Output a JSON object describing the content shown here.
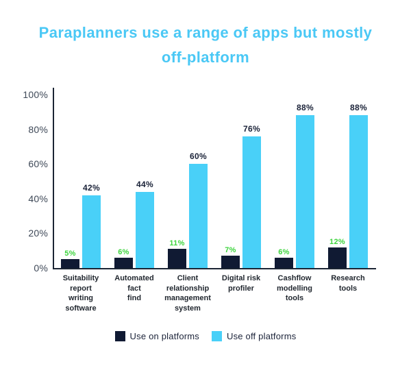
{
  "title": {
    "text": "Paraplanners use a range of apps but mostly off-platform",
    "lines": [
      "Paraplanners use a range of apps but mostly",
      "off-platform"
    ],
    "color": "#4AC8F5"
  },
  "chart_data": {
    "type": "bar",
    "title": "Paraplanners use a range of apps but mostly off-platform",
    "categories": [
      "Suitability report writing software",
      "Automated fact find",
      "Client relationship management system",
      "Digital risk profiler",
      "Cashflow modelling tools",
      "Research tools"
    ],
    "category_lines": [
      [
        "Suitability",
        "report",
        "writing",
        "software"
      ],
      [
        "Automated",
        "fact",
        "find"
      ],
      [
        "Client",
        "relationship",
        "management",
        "system"
      ],
      [
        "Digital risk",
        "profiler"
      ],
      [
        "Cashflow",
        "modelling",
        "tools"
      ],
      [
        "Research",
        "tools"
      ]
    ],
    "series": [
      {
        "name": "Use on platforms",
        "values": [
          5,
          6,
          11,
          7,
          6,
          12
        ],
        "color": "#101A33",
        "label_color": "#3DD43D"
      },
      {
        "name": "Use off platforms",
        "values": [
          42,
          44,
          60,
          76,
          88,
          88
        ],
        "color": "#49D0F8",
        "label_color": "#1A2238"
      }
    ],
    "value_suffix": "%",
    "y_ticks": [
      "100%",
      "80%",
      "60%",
      "40%",
      "20%",
      "0%"
    ],
    "ylim": [
      0,
      100
    ],
    "grid": false,
    "legend_position": "bottom",
    "style": {
      "axis_color": "#1B2433",
      "tick_label_color": "#3E4857",
      "category_label_color": "#21272F",
      "background": "#FFFFFF"
    }
  }
}
